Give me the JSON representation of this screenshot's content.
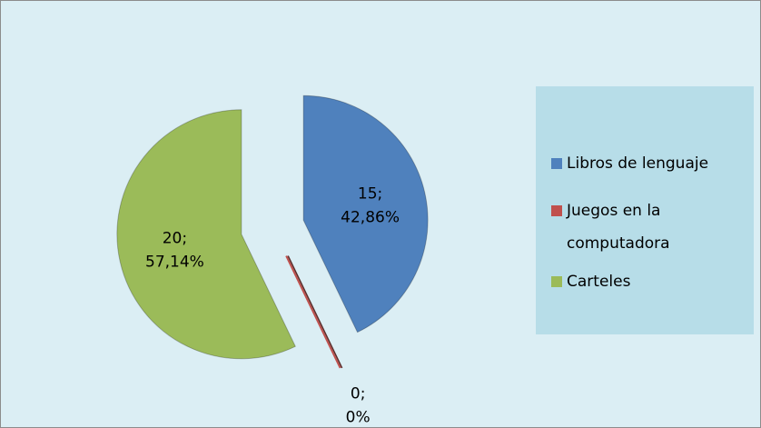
{
  "chart_data": {
    "type": "pie",
    "categories": [
      "Libros de lenguaje",
      "Juegos en la computadora",
      "Carteles"
    ],
    "values": [
      15,
      0,
      20
    ],
    "value_labels": [
      [
        "15;",
        "42,86%"
      ],
      [
        "0;",
        "0%"
      ],
      [
        "20;",
        "57,14%"
      ]
    ],
    "colors": [
      "#4f81bd",
      "#c0504d",
      "#9bbb59"
    ],
    "legend": "right"
  }
}
